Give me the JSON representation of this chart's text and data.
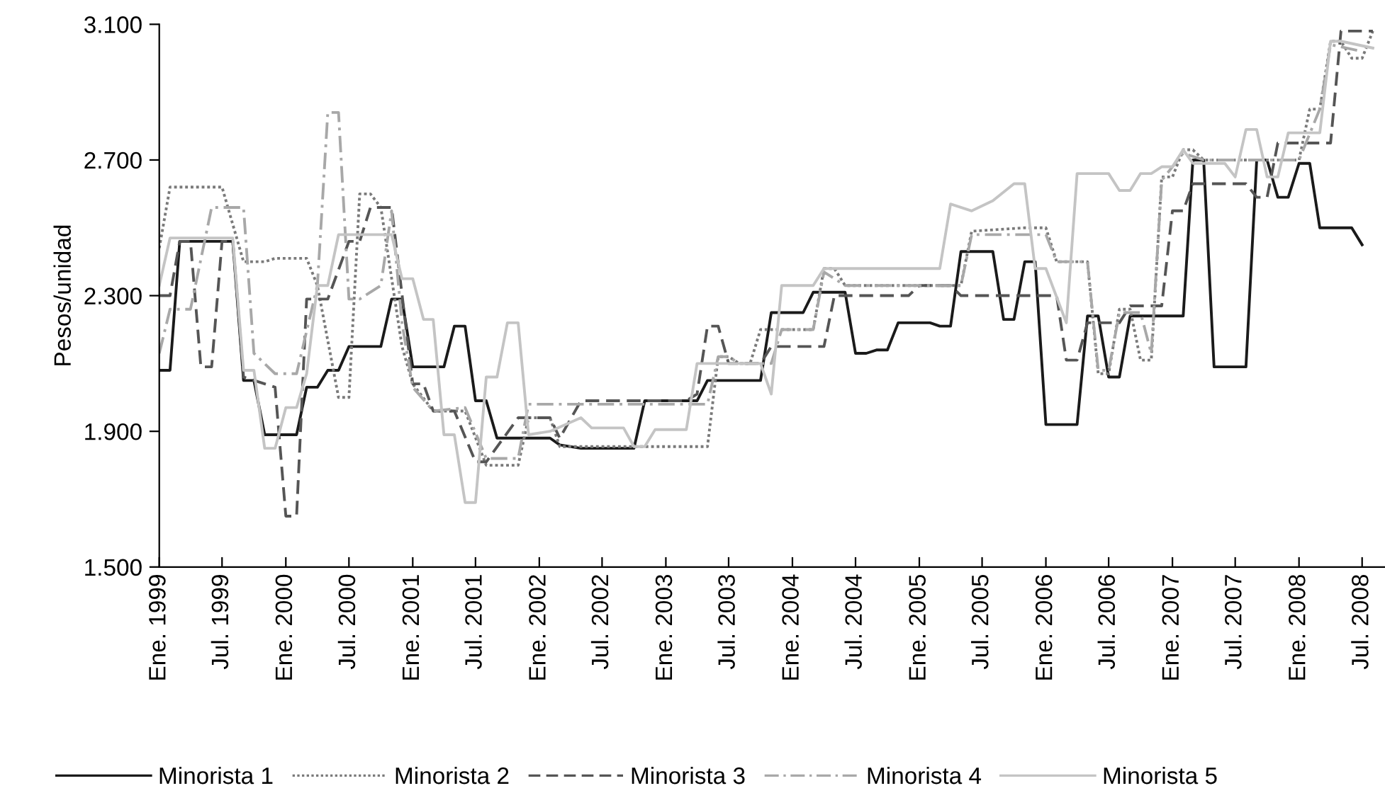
{
  "chart_data": {
    "type": "line",
    "ylabel": "Pesos/unidad",
    "xlim": [
      "1999-01",
      "2008-09-05"
    ],
    "ylim": [
      1500,
      3100
    ],
    "yticks": [
      {
        "value": 1500,
        "label": "1.500"
      },
      {
        "value": 1900,
        "label": "1.900"
      },
      {
        "value": 2300,
        "label": "2.300"
      },
      {
        "value": 2700,
        "label": "2.700"
      },
      {
        "value": 3100,
        "label": "3.100"
      }
    ],
    "xticks": [
      {
        "value": "1999-01",
        "label": "Ene. 1999"
      },
      {
        "value": "1999-07",
        "label": "Jul. 1999"
      },
      {
        "value": "2000-01",
        "label": "Ene. 2000"
      },
      {
        "value": "2000-07",
        "label": "Jul. 2000"
      },
      {
        "value": "2001-01",
        "label": "Ene. 2001"
      },
      {
        "value": "2001-07",
        "label": "Jul. 2001"
      },
      {
        "value": "2002-01",
        "label": "Ene. 2002"
      },
      {
        "value": "2002-07",
        "label": "Jul. 2002"
      },
      {
        "value": "2003-01",
        "label": "Ene. 2003"
      },
      {
        "value": "2003-07",
        "label": "Jul. 2003"
      },
      {
        "value": "2004-01",
        "label": "Ene. 2004"
      },
      {
        "value": "2004-07",
        "label": "Jul. 2004"
      },
      {
        "value": "2005-01",
        "label": "Ene. 2005"
      },
      {
        "value": "2005-07",
        "label": "Jul. 2005"
      },
      {
        "value": "2006-01",
        "label": "Ene. 2006"
      },
      {
        "value": "2006-07",
        "label": "Jul. 2006"
      },
      {
        "value": "2007-01",
        "label": "Ene. 2007"
      },
      {
        "value": "2007-07",
        "label": "Jul. 2007"
      },
      {
        "value": "2008-01",
        "label": "Ene. 2008"
      },
      {
        "value": "2008-07",
        "label": "Jul. 2008"
      }
    ],
    "grid": false,
    "legend": "bottom",
    "marker": "none",
    "series": [
      {
        "name": "Minorista 1",
        "color": "#1a1a1a",
        "line_style": "solid",
        "x": [
          "1999-01",
          "1999-02",
          "1999-03",
          "1999-08",
          "1999-09",
          "1999-10",
          "1999-11",
          "2000-02",
          "2000-03",
          "2000-04",
          "2000-05",
          "2000-06",
          "2000-07",
          "2000-10",
          "2000-11",
          "2000-12",
          "2001-01",
          "2001-04",
          "2001-05",
          "2001-06",
          "2001-07",
          "2001-08",
          "2001-09",
          "2002-02",
          "2002-03",
          "2002-05",
          "2002-10",
          "2002-11",
          "2003-04",
          "2003-05",
          "2003-10",
          "2003-11",
          "2004-02",
          "2004-03",
          "2004-06",
          "2004-07",
          "2004-08",
          "2004-09",
          "2004-10",
          "2004-11",
          "2005-02",
          "2005-03",
          "2005-04",
          "2005-05",
          "2005-08",
          "2005-09",
          "2005-10",
          "2005-11",
          "2005-12",
          "2006-01",
          "2006-04",
          "2006-05",
          "2006-06",
          "2006-07",
          "2006-08",
          "2006-09",
          "2007-02",
          "2007-03",
          "2007-04",
          "2007-05",
          "2007-08",
          "2007-09",
          "2007-10",
          "2007-11",
          "2007-12",
          "2008-01",
          "2008-02",
          "2008-03",
          "2008-06",
          "2008-07"
        ],
        "values": [
          2080,
          2080,
          2460,
          2460,
          2050,
          2050,
          1890,
          1890,
          2030,
          2030,
          2080,
          2080,
          2150,
          2150,
          2290,
          2290,
          2090,
          2090,
          2210,
          2210,
          1990,
          1990,
          1880,
          1880,
          1860,
          1850,
          1850,
          1990,
          1990,
          2050,
          2050,
          2250,
          2250,
          2310,
          2310,
          2130,
          2130,
          2140,
          2140,
          2220,
          2220,
          2210,
          2210,
          2430,
          2430,
          2230,
          2230,
          2400,
          2400,
          1920,
          1920,
          2240,
          2240,
          2060,
          2060,
          2240,
          2240,
          2700,
          2700,
          2090,
          2090,
          2700,
          2700,
          2590,
          2590,
          2690,
          2690,
          2500,
          2500,
          2450
        ]
      },
      {
        "name": "Minorista 2",
        "color": "#7a7a7a",
        "line_style": "dotted",
        "x": [
          "1999-01",
          "1999-02",
          "1999-07",
          "1999-09",
          "1999-11",
          "1999-12",
          "2000-03",
          "2000-04",
          "2000-06",
          "2000-07",
          "2000-08",
          "2000-09",
          "2000-10",
          "2000-12",
          "2001-01",
          "2001-03",
          "2001-06",
          "2001-08",
          "2001-11",
          "2001-12",
          "2002-02",
          "2002-03",
          "2003-05",
          "2003-06",
          "2003-07",
          "2003-08",
          "2003-09",
          "2003-10",
          "2004-03",
          "2004-04",
          "2004-05",
          "2004-06",
          "2005-05",
          "2005-06",
          "2005-11",
          "2006-01",
          "2006-02",
          "2006-05",
          "2006-06",
          "2006-07",
          "2006-08",
          "2006-09",
          "2006-10",
          "2006-11",
          "2006-12",
          "2007-01",
          "2007-02",
          "2007-03",
          "2007-04",
          "2008-01",
          "2008-02",
          "2008-03",
          "2008-04",
          "2008-05",
          "2008-06",
          "2008-07",
          "2008-08"
        ],
        "values": [
          2440,
          2620,
          2620,
          2400,
          2400,
          2410,
          2410,
          2330,
          2000,
          2000,
          2600,
          2600,
          2560,
          2150,
          2040,
          1960,
          1960,
          1800,
          1800,
          1940,
          1940,
          1855,
          1855,
          2120,
          2120,
          2100,
          2100,
          2200,
          2200,
          2380,
          2380,
          2330,
          2330,
          2490,
          2500,
          2500,
          2400,
          2400,
          2070,
          2070,
          2260,
          2260,
          2110,
          2110,
          2650,
          2650,
          2730,
          2730,
          2700,
          2700,
          2850,
          2850,
          3050,
          3050,
          3000,
          3000,
          3080
        ]
      },
      {
        "name": "Minorista 3",
        "color": "#555555",
        "line_style": "dashed",
        "x": [
          "1999-01",
          "1999-02",
          "1999-03",
          "1999-04",
          "1999-05",
          "1999-06",
          "1999-07",
          "1999-08",
          "1999-09",
          "1999-12",
          "2000-01",
          "2000-02",
          "2000-03",
          "2000-05",
          "2000-07",
          "2000-08",
          "2000-09",
          "2000-11",
          "2001-01",
          "2001-02",
          "2001-03",
          "2001-05",
          "2001-07",
          "2001-08",
          "2001-11",
          "2002-02",
          "2002-03",
          "2002-05",
          "2003-03",
          "2003-04",
          "2003-05",
          "2003-06",
          "2003-07",
          "2003-10",
          "2003-11",
          "2004-04",
          "2004-05",
          "2004-12",
          "2005-01",
          "2005-04",
          "2005-05",
          "2006-02",
          "2006-03",
          "2006-04",
          "2006-05",
          "2006-08",
          "2006-09",
          "2006-12",
          "2007-01",
          "2007-02",
          "2007-03",
          "2007-08",
          "2007-09",
          "2007-10",
          "2007-11",
          "2008-04",
          "2008-05",
          "2008-08"
        ],
        "values": [
          2300,
          2300,
          2460,
          2460,
          2090,
          2090,
          2460,
          2460,
          2060,
          2030,
          1650,
          1650,
          2290,
          2290,
          2460,
          2460,
          2560,
          2560,
          2040,
          2040,
          1960,
          1960,
          1810,
          1810,
          1940,
          1940,
          1880,
          1990,
          1990,
          2010,
          2210,
          2210,
          2100,
          2100,
          2150,
          2150,
          2300,
          2300,
          2330,
          2330,
          2300,
          2300,
          2110,
          2110,
          2220,
          2220,
          2270,
          2270,
          2550,
          2550,
          2630,
          2630,
          2590,
          2590,
          2750,
          2750,
          3080,
          3080
        ]
      },
      {
        "name": "Minorista 4",
        "color": "#a8a8a8",
        "line_style": "dashdot",
        "x": [
          "1999-01",
          "1999-02",
          "1999-04",
          "1999-06",
          "1999-09",
          "1999-10",
          "1999-12",
          "2000-02",
          "2000-04",
          "2000-05",
          "2000-06",
          "2000-07",
          "2000-08",
          "2000-10",
          "2000-11",
          "2000-12",
          "2001-01",
          "2001-03",
          "2001-06",
          "2001-08",
          "2001-11",
          "2001-12",
          "2003-05",
          "2003-06",
          "2003-07",
          "2003-08",
          "2003-11",
          "2003-12",
          "2004-03",
          "2004-04",
          "2004-06",
          "2005-05",
          "2005-06",
          "2006-01",
          "2006-02",
          "2006-05",
          "2006-06",
          "2006-07",
          "2006-08",
          "2006-10",
          "2006-11",
          "2006-12",
          "2007-02",
          "2007-04",
          "2008-01",
          "2008-03",
          "2008-04",
          "2008-07"
        ],
        "values": [
          2130,
          2260,
          2260,
          2560,
          2560,
          2130,
          2070,
          2070,
          2330,
          2840,
          2840,
          2290,
          2290,
          2330,
          2550,
          2220,
          2030,
          1960,
          1970,
          1820,
          1820,
          1980,
          1980,
          2120,
          2120,
          2100,
          2100,
          2200,
          2200,
          2370,
          2330,
          2330,
          2480,
          2480,
          2400,
          2400,
          2080,
          2080,
          2250,
          2250,
          2130,
          2640,
          2720,
          2700,
          2700,
          2850,
          3040,
          3020
        ]
      },
      {
        "name": "Minorista 5",
        "color": "#c4c4c4",
        "line_style": "solid",
        "x": [
          "1999-01",
          "1999-02",
          "1999-08",
          "1999-09",
          "1999-10",
          "1999-11",
          "1999-12",
          "2000-01",
          "2000-02",
          "2000-03",
          "2000-04",
          "2000-05",
          "2000-06",
          "2000-11",
          "2000-12",
          "2001-01",
          "2001-02",
          "2001-03",
          "2001-04",
          "2001-05",
          "2001-06",
          "2001-07",
          "2001-08",
          "2001-09",
          "2001-10",
          "2001-11",
          "2001-12",
          "2002-02",
          "2002-05",
          "2002-06",
          "2002-09",
          "2002-10",
          "2002-11",
          "2002-12",
          "2003-03",
          "2003-04",
          "2003-10",
          "2003-11",
          "2003-12",
          "2004-03",
          "2004-04",
          "2005-03",
          "2005-04",
          "2005-06",
          "2005-08",
          "2005-10",
          "2005-11",
          "2005-12",
          "2006-01",
          "2006-03",
          "2006-04",
          "2006-07",
          "2006-08",
          "2006-09",
          "2006-10",
          "2006-11",
          "2006-12",
          "2007-01",
          "2007-02",
          "2007-03",
          "2007-06",
          "2007-07",
          "2007-08",
          "2007-09",
          "2007-10",
          "2007-11",
          "2007-12",
          "2008-03",
          "2008-04",
          "2008-05",
          "2008-08"
        ],
        "values": [
          2330,
          2470,
          2470,
          2080,
          2080,
          1850,
          1850,
          1970,
          1970,
          2070,
          2330,
          2330,
          2480,
          2480,
          2350,
          2350,
          2230,
          2230,
          1890,
          1890,
          1690,
          1690,
          2060,
          2060,
          2220,
          2220,
          1890,
          1900,
          1940,
          1910,
          1910,
          1855,
          1855,
          1905,
          1905,
          2100,
          2100,
          2010,
          2330,
          2330,
          2380,
          2380,
          2570,
          2550,
          2580,
          2630,
          2630,
          2380,
          2380,
          2220,
          2660,
          2660,
          2610,
          2610,
          2660,
          2660,
          2680,
          2680,
          2730,
          2690,
          2690,
          2650,
          2790,
          2790,
          2650,
          2650,
          2780,
          2780,
          3050,
          3050,
          3030
        ]
      }
    ]
  }
}
